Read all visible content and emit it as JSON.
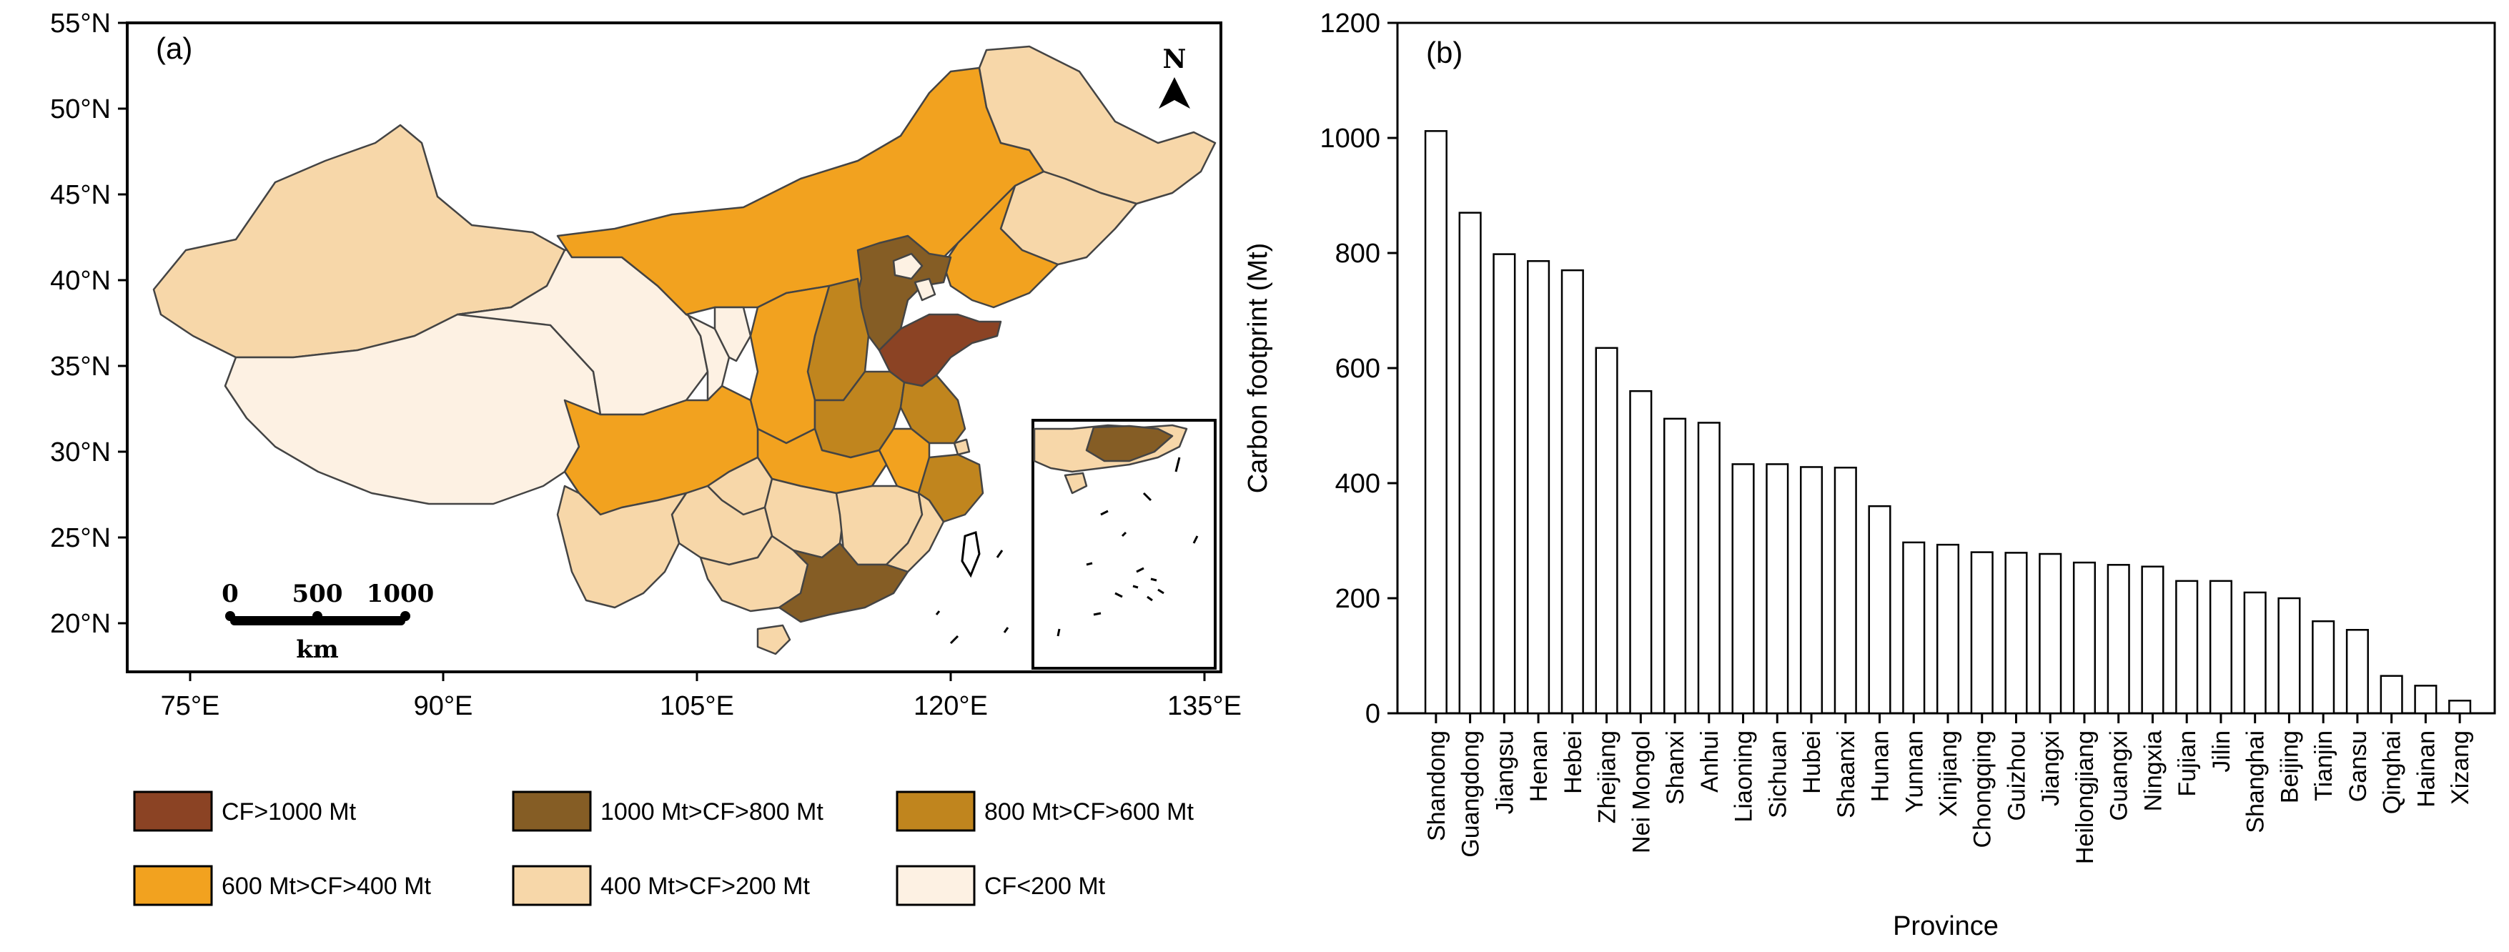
{
  "map_panel": {
    "label": "(a)",
    "north_label": "N",
    "lat_ticks": [
      "55°N",
      "50°N",
      "45°N",
      "40°N",
      "35°N",
      "30°N",
      "25°N",
      "20°N"
    ],
    "lon_ticks": [
      "75°E",
      "90°E",
      "105°E",
      "120°E",
      "135°E"
    ],
    "scale_bar": {
      "labels": [
        "0",
        "500",
        "1000"
      ],
      "unit": "km"
    },
    "legend": [
      {
        "label": "CF>1000 Mt",
        "color": "#8b4324"
      },
      {
        "label": "1000 Mt>CF>800 Mt",
        "color": "#855d25"
      },
      {
        "label": "800 Mt>CF>600 Mt",
        "color": "#c0851e"
      },
      {
        "label": "600 Mt>CF>400 Mt",
        "color": "#f2a21f"
      },
      {
        "label": "400 Mt>CF>200 Mt",
        "color": "#f7d7a9"
      },
      {
        "label": "CF<200 Mt",
        "color": "#fdf1e3"
      }
    ]
  },
  "chart_panel": {
    "label": "(b)",
    "ylabel": "Carbon footprint (Mt)",
    "xlabel": "Province",
    "y_ticks": [
      "0",
      "200",
      "400",
      "600",
      "800",
      "1000",
      "1200"
    ]
  },
  "chart_data": {
    "type": "bar",
    "title": "",
    "xlabel": "Province",
    "ylabel": "Carbon footprint (Mt)",
    "ylim": [
      0,
      1200
    ],
    "grid": false,
    "categories": [
      "Shandong",
      "Guangdong",
      "Jiangsu",
      "Henan",
      "Hebei",
      "Zhejiang",
      "Nei Mongol",
      "Shanxi",
      "Anhui",
      "Liaoning",
      "Sichuan",
      "Hubei",
      "Shaanxi",
      "Hunan",
      "Yunnan",
      "Xinjiang",
      "Chongqing",
      "Guizhou",
      "Jiangxi",
      "Heilongjiang",
      "Guangxi",
      "Ningxia",
      "Fujian",
      "Jilin",
      "Shanghai",
      "Beijing",
      "Tianjin",
      "Gansu",
      "Qinghai",
      "Hainan",
      "Xizang"
    ],
    "values": [
      1012,
      870,
      798,
      786,
      770,
      635,
      560,
      512,
      505,
      433,
      433,
      428,
      427,
      360,
      297,
      293,
      280,
      279,
      277,
      262,
      258,
      255,
      230,
      230,
      210,
      200,
      160,
      145,
      65,
      48,
      22
    ]
  }
}
